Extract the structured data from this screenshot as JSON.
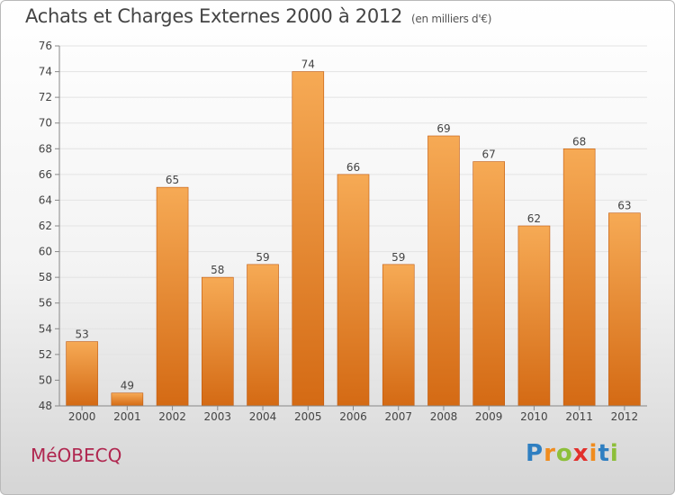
{
  "header": {
    "title": "Achats et Charges Externes 2000 à 2012",
    "unit": "(en milliers d'€)"
  },
  "footer": {
    "commune": "MéOBECQ",
    "logo": {
      "letters": [
        "P",
        "r",
        "o",
        "x",
        "i",
        "t",
        "i"
      ],
      "colors": [
        "#2f7fc1",
        "#f08c1e",
        "#8dbf3a",
        "#e2302c",
        "#f08c1e",
        "#2f7fc1",
        "#8dbf3a"
      ]
    }
  },
  "colors": {
    "bar_top": "#f6aa55",
    "bar_bottom": "#d46a14",
    "bar_edge": "#c0590e",
    "axis": "#888888",
    "grid": "#e3e3e3"
  },
  "chart_data": {
    "type": "bar",
    "categories": [
      "2000",
      "2001",
      "2002",
      "2003",
      "2004",
      "2005",
      "2006",
      "2007",
      "2008",
      "2009",
      "2010",
      "2011",
      "2012"
    ],
    "values": [
      53,
      49,
      65,
      58,
      59,
      74,
      66,
      59,
      69,
      67,
      62,
      68,
      63
    ],
    "ylim": [
      48,
      76
    ],
    "yticks": [
      48,
      50,
      52,
      54,
      56,
      58,
      60,
      62,
      64,
      66,
      68,
      70,
      72,
      74,
      76
    ],
    "grid": "horizontal",
    "data_labels": true
  }
}
